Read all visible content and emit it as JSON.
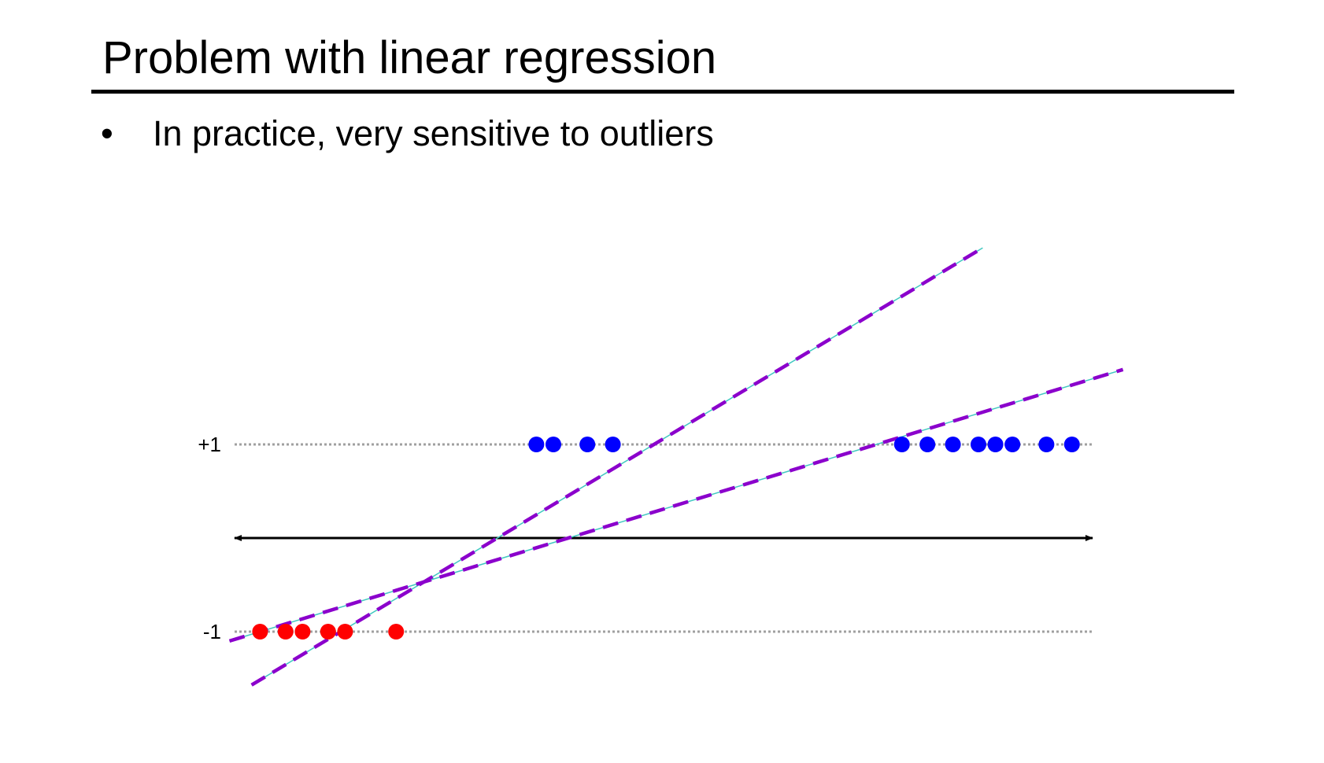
{
  "slide": {
    "title": "Problem with linear regression",
    "bullet_symbol": "•",
    "bullet_text": "In practice, very sensitive to outliers"
  },
  "diagram": {
    "levels": [
      {
        "label": "+1",
        "value": 1
      },
      {
        "label": "-1",
        "value": -1
      }
    ],
    "red_points_x": [
      0.3,
      0.6,
      0.8,
      1.1,
      1.3,
      1.9
    ],
    "blue_points_x": [
      3.55,
      3.75,
      4.15,
      4.45,
      7.85,
      8.15,
      8.45,
      8.75,
      8.95,
      9.15,
      9.55,
      9.85
    ],
    "fit_lines": [
      {
        "x_start": 0.2,
        "y_start": -1.57,
        "x_end": 8.8,
        "y_end": 3.1
      },
      {
        "x_start": -0.06,
        "y_start": -1.1,
        "x_end": 10.45,
        "y_end": 1.8
      }
    ],
    "colors": {
      "negative_points": "#ff0000",
      "positive_points": "#0000ff",
      "fit_dash": "#8b00cc",
      "fit_thin": "#40c8c0",
      "level_dotted": "#a0a0a0",
      "axis": "#000000"
    }
  }
}
